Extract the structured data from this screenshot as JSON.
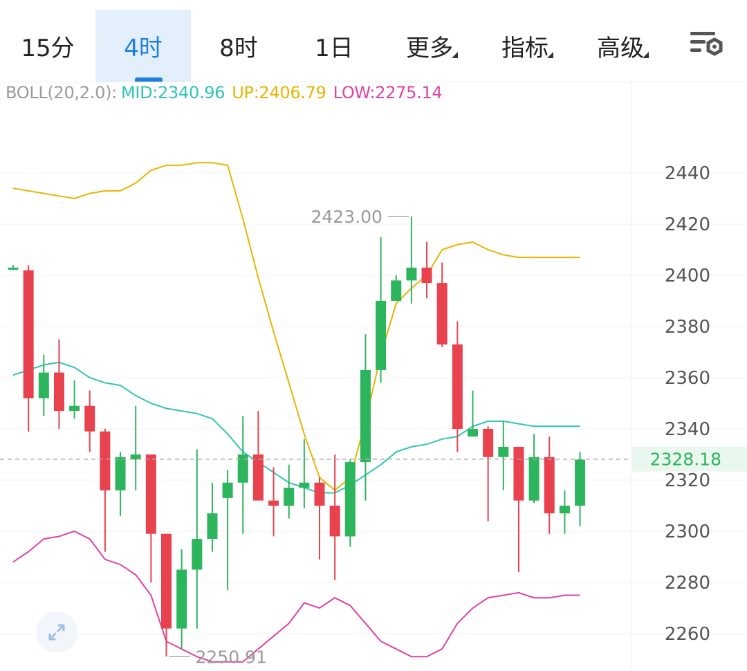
{
  "toolbar": {
    "tabs": [
      {
        "label": "15分",
        "active": false
      },
      {
        "label": "4时",
        "active": true
      },
      {
        "label": "8时",
        "active": false
      },
      {
        "label": "1日",
        "active": false
      },
      {
        "label": "更多",
        "active": false,
        "dropdown": true
      },
      {
        "label": "指标",
        "active": false,
        "dropdown": true
      },
      {
        "label": "高级",
        "active": false,
        "dropdown": true
      }
    ],
    "settings_icon": "chart-settings-icon"
  },
  "indicator": {
    "name": "BOLL(20,2.0):",
    "mid": "MID:2340.96",
    "up": "UP:2406.79",
    "low": "LOW:2275.14"
  },
  "colors": {
    "accent": "#1e7fe0",
    "up_candle": "#2db55d",
    "down_candle": "#e8424f",
    "boll_mid": "#2ec4b6",
    "boll_up": "#e8b400",
    "boll_low": "#e040a8"
  },
  "chart_data": {
    "type": "candlestick",
    "y_ticks": [
      2440,
      2420,
      2400,
      2380,
      2360,
      2340,
      2320,
      2300,
      2280,
      2260
    ],
    "current_price": "2328.18",
    "high_marker": "2423.00",
    "low_marker": "2250.91",
    "candles": [
      {
        "o": 2403,
        "h": 2404,
        "l": 2402,
        "c": 2403
      },
      {
        "o": 2402,
        "h": 2404,
        "l": 2339,
        "c": 2352
      },
      {
        "o": 2352,
        "h": 2369,
        "l": 2345,
        "c": 2362
      },
      {
        "o": 2362,
        "h": 2375,
        "l": 2340,
        "c": 2347
      },
      {
        "o": 2347,
        "h": 2359,
        "l": 2344,
        "c": 2349
      },
      {
        "o": 2349,
        "h": 2355,
        "l": 2331,
        "c": 2339
      },
      {
        "o": 2339,
        "h": 2340,
        "l": 2292,
        "c": 2316
      },
      {
        "o": 2316,
        "h": 2331,
        "l": 2306,
        "c": 2329
      },
      {
        "o": 2328,
        "h": 2349,
        "l": 2316,
        "c": 2330
      },
      {
        "o": 2330,
        "h": 2330,
        "l": 2280,
        "c": 2299
      },
      {
        "o": 2299,
        "h": 2299,
        "l": 2251,
        "c": 2262
      },
      {
        "o": 2262,
        "h": 2293,
        "l": 2254,
        "c": 2285
      },
      {
        "o": 2285,
        "h": 2332,
        "l": 2262,
        "c": 2297
      },
      {
        "o": 2297,
        "h": 2319,
        "l": 2292,
        "c": 2307
      },
      {
        "o": 2313,
        "h": 2324,
        "l": 2277,
        "c": 2319
      },
      {
        "o": 2319,
        "h": 2345,
        "l": 2299,
        "c": 2330
      },
      {
        "o": 2330,
        "h": 2347,
        "l": 2313,
        "c": 2312
      },
      {
        "o": 2312,
        "h": 2325,
        "l": 2298,
        "c": 2310
      },
      {
        "o": 2310,
        "h": 2326,
        "l": 2305,
        "c": 2317
      },
      {
        "o": 2317,
        "h": 2336,
        "l": 2309,
        "c": 2319
      },
      {
        "o": 2319,
        "h": 2321,
        "l": 2289,
        "c": 2310
      },
      {
        "o": 2310,
        "h": 2330,
        "l": 2281,
        "c": 2298
      },
      {
        "o": 2298,
        "h": 2328,
        "l": 2294,
        "c": 2327
      },
      {
        "o": 2327,
        "h": 2377,
        "l": 2312,
        "c": 2363
      },
      {
        "o": 2363,
        "h": 2415,
        "l": 2358,
        "c": 2390
      },
      {
        "o": 2390,
        "h": 2400,
        "l": 2390,
        "c": 2398
      },
      {
        "o": 2398,
        "h": 2423,
        "l": 2389,
        "c": 2403
      },
      {
        "o": 2403,
        "h": 2413,
        "l": 2391,
        "c": 2397
      },
      {
        "o": 2397,
        "h": 2405,
        "l": 2372,
        "c": 2373
      },
      {
        "o": 2373,
        "h": 2382,
        "l": 2331,
        "c": 2340
      },
      {
        "o": 2337,
        "h": 2355,
        "l": 2337,
        "c": 2340
      },
      {
        "o": 2340,
        "h": 2341,
        "l": 2304,
        "c": 2329
      },
      {
        "o": 2329,
        "h": 2343,
        "l": 2316,
        "c": 2333
      },
      {
        "o": 2333,
        "h": 2333,
        "l": 2284,
        "c": 2312
      },
      {
        "o": 2312,
        "h": 2338,
        "l": 2311,
        "c": 2329
      },
      {
        "o": 2329,
        "h": 2337,
        "l": 2299,
        "c": 2307
      },
      {
        "o": 2307,
        "h": 2316,
        "l": 2299,
        "c": 2310
      },
      {
        "o": 2310,
        "h": 2331,
        "l": 2302,
        "c": 2328
      }
    ],
    "boll_up": [
      2434,
      2433,
      2432,
      2431,
      2430,
      2432,
      2433,
      2433,
      2436,
      2441,
      2443,
      2443,
      2444,
      2444,
      2443,
      2422,
      2399,
      2378,
      2358,
      2338,
      2321,
      2316,
      2321,
      2343,
      2369,
      2389,
      2395,
      2400,
      2410,
      2412,
      2413,
      2410,
      2408,
      2407,
      2407,
      2407,
      2407,
      2407
    ],
    "boll_mid": [
      2361,
      2363,
      2365,
      2366,
      2364,
      2360,
      2358,
      2357,
      2353,
      2350,
      2348,
      2347,
      2346,
      2344,
      2338,
      2331,
      2327,
      2323,
      2319,
      2317,
      2315,
      2315,
      2318,
      2322,
      2326,
      2331,
      2333,
      2334,
      2336,
      2337,
      2341,
      2343,
      2343,
      2342,
      2341,
      2341,
      2341,
      2341
    ],
    "boll_low": [
      2288,
      2292,
      2297,
      2298,
      2300,
      2297,
      2289,
      2287,
      2283,
      2275,
      2257,
      2254,
      2251,
      2249,
      2249,
      2249,
      2254,
      2259,
      2264,
      2272,
      2270,
      2274,
      2271,
      2264,
      2257,
      2254,
      2251,
      2251,
      2254,
      2264,
      2270,
      2274,
      2275,
      2276,
      2274,
      2274,
      2275,
      2275
    ]
  }
}
